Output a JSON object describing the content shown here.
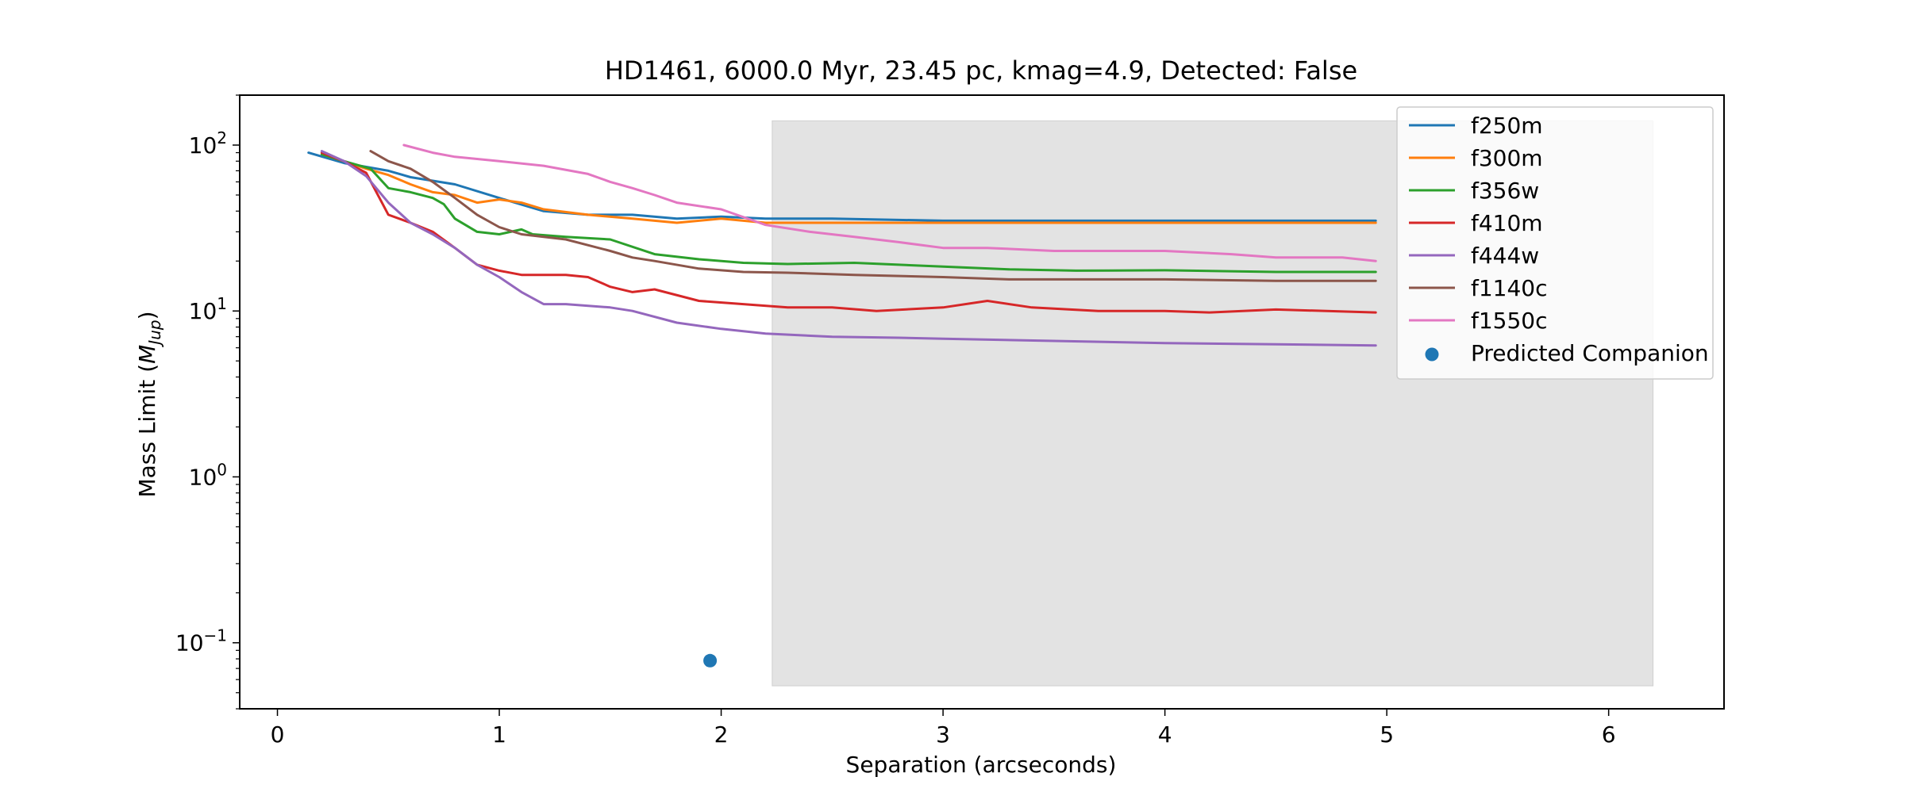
{
  "chart_data": {
    "type": "line",
    "title": "HD1461, 6000.0 Myr, 23.45 pc, kmag=4.9, Detected: False",
    "xlabel": "Separation (arcseconds)",
    "ylabel_prefix": "Mass Limit (",
    "ylabel_symbol": "M",
    "ylabel_sub": "Jup",
    "ylabel_suffix": ")",
    "xlim": [
      -0.17,
      6.52
    ],
    "ylim": [
      0.04,
      200
    ],
    "yscale": "log",
    "grid": false,
    "legend_position": "top-right",
    "x_ticks": [
      {
        "value": 0,
        "label": "0"
      },
      {
        "value": 1,
        "label": "1"
      },
      {
        "value": 2,
        "label": "2"
      },
      {
        "value": 3,
        "label": "3"
      },
      {
        "value": 4,
        "label": "4"
      },
      {
        "value": 5,
        "label": "5"
      },
      {
        "value": 6,
        "label": "6"
      }
    ],
    "y_ticks": [
      {
        "value": 0.1,
        "base": "10",
        "exp": "−1"
      },
      {
        "value": 1,
        "base": "10",
        "exp": "0"
      },
      {
        "value": 10,
        "base": "10",
        "exp": "1"
      },
      {
        "value": 100,
        "base": "10",
        "exp": "2"
      }
    ],
    "shaded_region": {
      "x": [
        2.23,
        6.2
      ],
      "y": [
        0.055,
        140
      ],
      "color": "#e3e3e3"
    },
    "series": [
      {
        "name": "f250m",
        "color": "#1f77b4",
        "x": [
          0.14,
          0.3,
          0.5,
          0.6,
          0.8,
          1.0,
          1.2,
          1.4,
          1.6,
          1.8,
          2.0,
          2.2,
          2.5,
          3.0,
          3.5,
          4.0,
          4.5,
          4.95
        ],
        "y": [
          90,
          78,
          70,
          64,
          58,
          48,
          40,
          38,
          38,
          36,
          37,
          36,
          36,
          35,
          35,
          35,
          35,
          35
        ]
      },
      {
        "name": "f300m",
        "color": "#ff7f0e",
        "x": [
          0.2,
          0.3,
          0.4,
          0.5,
          0.6,
          0.7,
          0.8,
          0.9,
          1.0,
          1.1,
          1.2,
          1.4,
          1.6,
          1.8,
          2.0,
          2.2,
          2.5,
          3.0,
          3.5,
          4.0,
          4.5,
          4.95
        ],
        "y": [
          88,
          80,
          72,
          66,
          58,
          52,
          50,
          45,
          47,
          45,
          41,
          38,
          36,
          34,
          36,
          34,
          34,
          34,
          34,
          34,
          34,
          34
        ]
      },
      {
        "name": "f356w",
        "color": "#2ca02c",
        "x": [
          0.2,
          0.3,
          0.42,
          0.5,
          0.6,
          0.7,
          0.75,
          0.8,
          0.9,
          1.0,
          1.1,
          1.15,
          1.3,
          1.5,
          1.7,
          1.9,
          2.1,
          2.3,
          2.6,
          3.0,
          3.3,
          3.6,
          4.0,
          4.5,
          4.95
        ],
        "y": [
          88,
          80,
          72,
          55,
          52,
          48,
          44,
          36,
          30,
          29,
          31,
          29,
          28,
          27,
          22,
          20.5,
          19.5,
          19.2,
          19.5,
          18.5,
          17.8,
          17.5,
          17.6,
          17.2,
          17.2
        ]
      },
      {
        "name": "f410m",
        "color": "#d62728",
        "x": [
          0.2,
          0.3,
          0.4,
          0.5,
          0.6,
          0.7,
          0.8,
          0.9,
          1.0,
          1.1,
          1.2,
          1.3,
          1.4,
          1.5,
          1.6,
          1.7,
          1.9,
          2.1,
          2.3,
          2.5,
          2.7,
          3.0,
          3.2,
          3.4,
          3.7,
          4.0,
          4.2,
          4.5,
          4.95
        ],
        "y": [
          90,
          80,
          68,
          38,
          34,
          30,
          24,
          19,
          17.5,
          16.5,
          16.5,
          16.5,
          16,
          14,
          13,
          13.5,
          11.5,
          11,
          10.5,
          10.5,
          10,
          10.5,
          11.5,
          10.5,
          10,
          10,
          9.8,
          10.2,
          9.8
        ]
      },
      {
        "name": "f444w",
        "color": "#9467bd",
        "x": [
          0.2,
          0.3,
          0.4,
          0.5,
          0.6,
          0.7,
          0.8,
          0.9,
          1.0,
          1.1,
          1.2,
          1.3,
          1.5,
          1.6,
          1.8,
          2.0,
          2.2,
          2.5,
          2.8,
          3.0,
          3.5,
          4.0,
          4.5,
          4.95
        ],
        "y": [
          92,
          80,
          65,
          45,
          34,
          29,
          24,
          19,
          16,
          13,
          11,
          11,
          10.5,
          10,
          8.5,
          7.8,
          7.3,
          7.0,
          6.9,
          6.8,
          6.6,
          6.4,
          6.3,
          6.2
        ]
      },
      {
        "name": "f1140c",
        "color": "#8c564b",
        "x": [
          0.42,
          0.5,
          0.6,
          0.7,
          0.8,
          0.9,
          1.0,
          1.1,
          1.3,
          1.5,
          1.6,
          1.7,
          1.9,
          2.1,
          2.3,
          2.6,
          3.0,
          3.3,
          3.6,
          4.0,
          4.5,
          4.95
        ],
        "y": [
          92,
          80,
          72,
          60,
          48,
          38,
          32,
          29,
          27,
          23,
          21,
          20,
          18,
          17.2,
          17,
          16.5,
          16,
          15.5,
          15.5,
          15.5,
          15.2,
          15.2
        ]
      },
      {
        "name": "f1550c",
        "color": "#e377c2",
        "x": [
          0.57,
          0.7,
          0.8,
          1.0,
          1.2,
          1.4,
          1.5,
          1.6,
          1.7,
          1.8,
          2.0,
          2.2,
          2.4,
          2.6,
          2.8,
          3.0,
          3.2,
          3.5,
          3.8,
          4.0,
          4.3,
          4.5,
          4.8,
          4.95
        ],
        "y": [
          100,
          90,
          85,
          80,
          75,
          67,
          60,
          55,
          50,
          45,
          41,
          33,
          30,
          28,
          26,
          24,
          24,
          23,
          23,
          23,
          22,
          21,
          21,
          20
        ]
      }
    ],
    "scatter": [
      {
        "name": "Predicted Companion",
        "color": "#1f77b4",
        "x": [
          1.95
        ],
        "y": [
          0.078
        ]
      }
    ]
  }
}
